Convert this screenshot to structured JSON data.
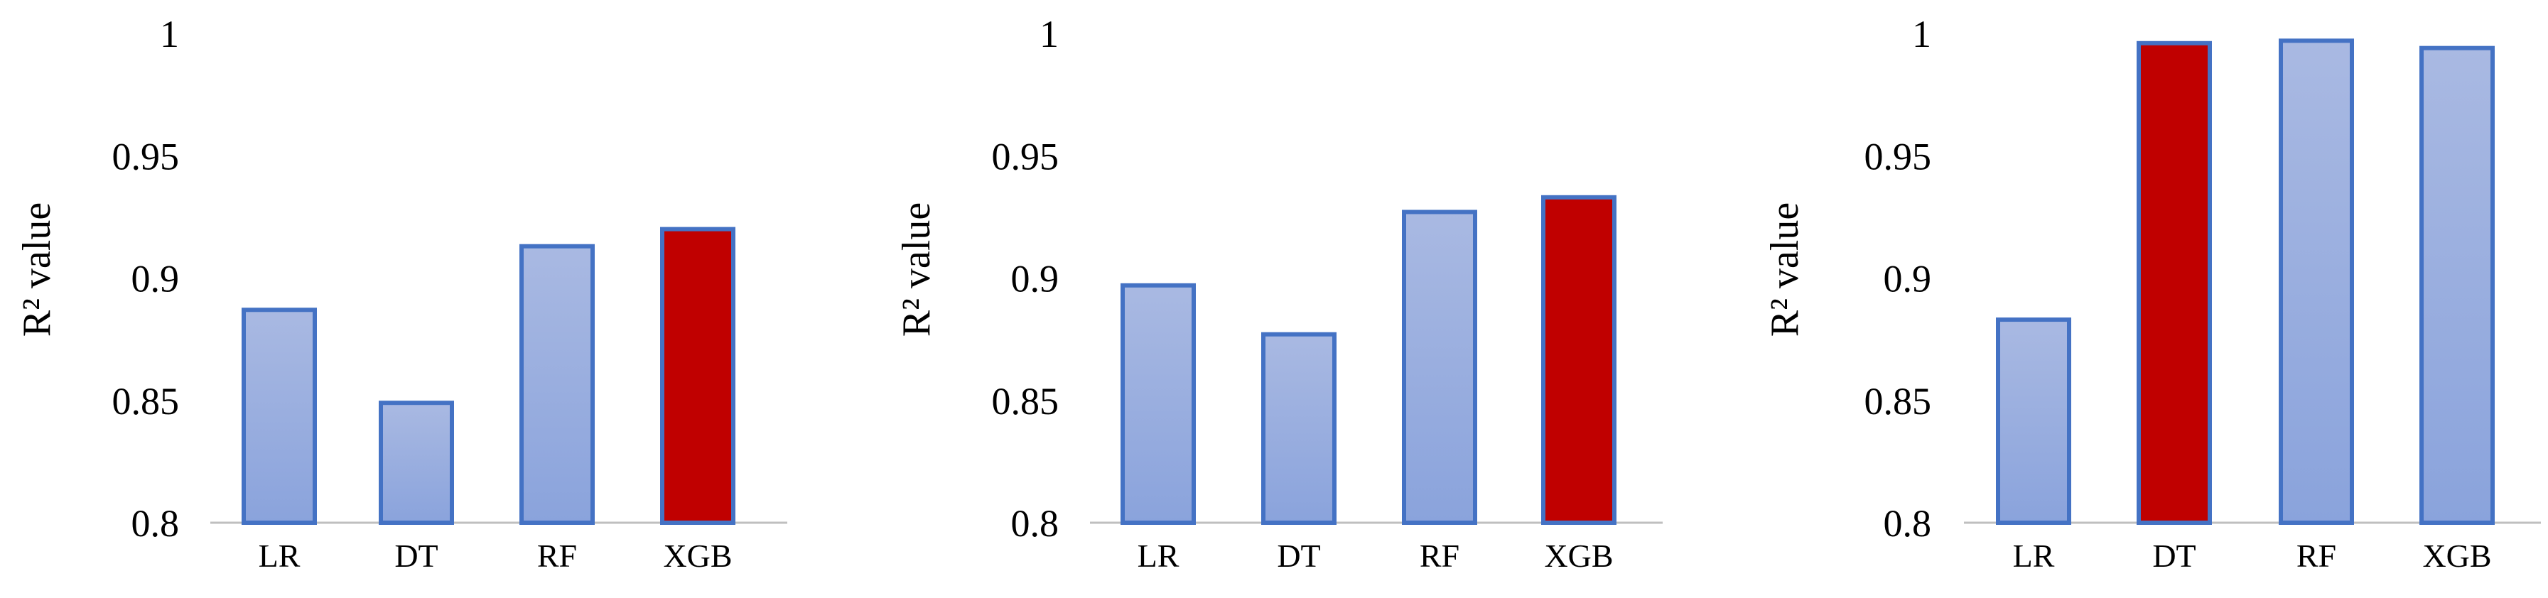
{
  "chart_data": [
    {
      "type": "bar",
      "ylabel": "R² value",
      "ylim": [
        0.8,
        1.0
      ],
      "yticks": [
        "0.8",
        "0.85",
        "0.9",
        "0.95",
        "1"
      ],
      "categories": [
        "LR",
        "DT",
        "RF",
        "XGB"
      ],
      "values": [
        0.887,
        0.849,
        0.913,
        0.92
      ],
      "highlight_index": 3,
      "grid": false
    },
    {
      "type": "bar",
      "ylabel": "R² value",
      "ylim": [
        0.8,
        1.0
      ],
      "yticks": [
        "0.8",
        "0.85",
        "0.9",
        "0.95",
        "1"
      ],
      "categories": [
        "LR",
        "DT",
        "RF",
        "XGB"
      ],
      "values": [
        0.897,
        0.877,
        0.927,
        0.933
      ],
      "highlight_index": 3,
      "grid": false
    },
    {
      "type": "bar",
      "ylabel": "R² value",
      "ylim": [
        0.8,
        1.0
      ],
      "yticks": [
        "0.8",
        "0.85",
        "0.9",
        "0.95",
        "1"
      ],
      "categories": [
        "LR",
        "DT",
        "RF",
        "XGB"
      ],
      "values": [
        0.883,
        0.996,
        0.997,
        0.994
      ],
      "highlight_index": 1,
      "grid": false
    }
  ],
  "colors": {
    "bar_fill_top": "#a9b9e2",
    "bar_fill_bottom": "#8aa3dc",
    "bar_stroke": "#4472c4",
    "highlight_fill": "#c00000",
    "axis": "#bfbfbf",
    "text": "#000000"
  }
}
